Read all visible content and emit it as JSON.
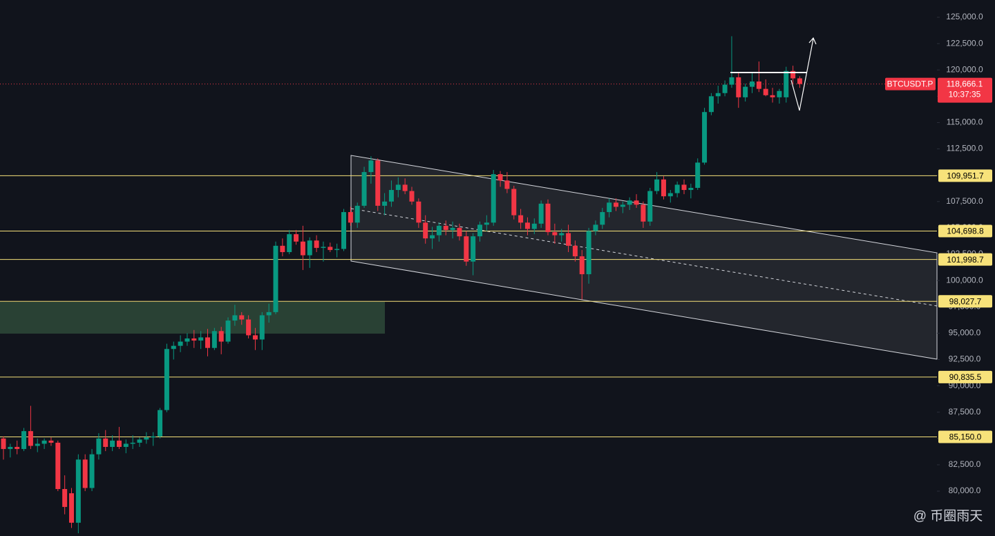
{
  "chart_data": {
    "type": "candlestick",
    "up_color": "#089981",
    "down_color": "#f23645",
    "level_color": "#f7e27a",
    "price_color": "#f23645",
    "ylim": [
      75740,
      126640
    ],
    "yticks": [
      {
        "value": 80000,
        "label": "80,000.0"
      },
      {
        "value": 82500,
        "label": "82,500.0"
      },
      {
        "value": 85000,
        "label": "85,000.0"
      },
      {
        "value": 87500,
        "label": "87,500.0"
      },
      {
        "value": 90000,
        "label": "90,000.0"
      },
      {
        "value": 92500,
        "label": "92,500.0"
      },
      {
        "value": 95000,
        "label": "95,000.0"
      },
      {
        "value": 97500,
        "label": "97,500.0"
      },
      {
        "value": 100000,
        "label": "100,000.0"
      },
      {
        "value": 102500,
        "label": "102,500.0"
      },
      {
        "value": 105000,
        "label": "105,000.0"
      },
      {
        "value": 107500,
        "label": "107,500.0"
      },
      {
        "value": 110000,
        "label": "110,000.0"
      },
      {
        "value": 112500,
        "label": "112,500.0"
      },
      {
        "value": 115000,
        "label": "115,000.0"
      },
      {
        "value": 117500,
        "label": "117,500.0"
      },
      {
        "value": 120000,
        "label": "120,000.0"
      },
      {
        "value": 122500,
        "label": "122,500.0"
      },
      {
        "value": 125000,
        "label": "125,000.0"
      }
    ],
    "levels": [
      {
        "value": 109951.7,
        "label": "109,951.7"
      },
      {
        "value": 104698.8,
        "label": "104,698.8"
      },
      {
        "value": 101998.7,
        "label": "101,998.7"
      },
      {
        "value": 98027.7,
        "label": "98,027.7"
      },
      {
        "value": 90835.5,
        "label": "90,835.5"
      },
      {
        "value": 85150.0,
        "label": "85,150.0"
      }
    ],
    "last_price": {
      "symbol": "BTCUSDT.P",
      "value": 118666.1,
      "label": "118,666.1",
      "countdown": "10:37:35"
    },
    "watermark": "@ 币圈雨天",
    "ohlc": [
      [
        85000,
        85200,
        83000,
        84000
      ],
      [
        84000,
        84500,
        83200,
        84200
      ],
      [
        84200,
        84800,
        83500,
        84000
      ],
      [
        84000,
        86000,
        83800,
        85700
      ],
      [
        85700,
        88100,
        84000,
        84300
      ],
      [
        84300,
        85000,
        83700,
        84500
      ],
      [
        84500,
        85000,
        84000,
        84800
      ],
      [
        84800,
        85100,
        84300,
        84600
      ],
      [
        84600,
        84800,
        80000,
        80200
      ],
      [
        80200,
        81500,
        77800,
        78500
      ],
      [
        79800,
        80300,
        76500,
        77000
      ],
      [
        77000,
        83500,
        76000,
        83000
      ],
      [
        83000,
        83500,
        80000,
        80300
      ],
      [
        80300,
        84000,
        80000,
        83500
      ],
      [
        83500,
        85500,
        83000,
        85000
      ],
      [
        85000,
        85800,
        83800,
        84200
      ],
      [
        84200,
        85300,
        83800,
        84800
      ],
      [
        84800,
        86100,
        84000,
        84200
      ],
      [
        84200,
        84900,
        83600,
        84500
      ],
      [
        84500,
        85300,
        84000,
        84600
      ],
      [
        84600,
        85100,
        84200,
        84900
      ],
      [
        84900,
        85600,
        84500,
        85100
      ],
      [
        85100,
        85600,
        84300,
        85200
      ],
      [
        85200,
        87900,
        85000,
        87700
      ],
      [
        87700,
        94000,
        87500,
        93500
      ],
      [
        93500,
        94200,
        92500,
        93800
      ],
      [
        93800,
        94800,
        93200,
        94200
      ],
      [
        94200,
        95000,
        93800,
        94500
      ],
      [
        94500,
        95300,
        93600,
        94300
      ],
      [
        94300,
        95200,
        93500,
        94600
      ],
      [
        94600,
        95400,
        92800,
        93600
      ],
      [
        93600,
        95500,
        93400,
        95200
      ],
      [
        95200,
        95600,
        93000,
        94200
      ],
      [
        94200,
        96500,
        94000,
        96200
      ],
      [
        96200,
        97700,
        95700,
        96700
      ],
      [
        96700,
        97000,
        95800,
        96300
      ],
      [
        96300,
        96700,
        94500,
        94800
      ],
      [
        94800,
        95500,
        93400,
        94400
      ],
      [
        94400,
        97000,
        93400,
        96700
      ],
      [
        96700,
        97800,
        96000,
        97000
      ],
      [
        97000,
        103700,
        96800,
        103300
      ],
      [
        103300,
        104000,
        102300,
        102700
      ],
      [
        102700,
        104800,
        102500,
        104400
      ],
      [
        104400,
        104800,
        103400,
        103700
      ],
      [
        103700,
        105200,
        101000,
        102400
      ],
      [
        102400,
        104100,
        101200,
        103800
      ],
      [
        103800,
        104300,
        102700,
        103100
      ],
      [
        103100,
        103700,
        101800,
        103200
      ],
      [
        103200,
        103600,
        102700,
        102900
      ],
      [
        102900,
        103500,
        102200,
        103000
      ],
      [
        103000,
        106800,
        102800,
        106500
      ],
      [
        106500,
        107000,
        105200,
        105500
      ],
      [
        105500,
        107400,
        105000,
        107100
      ],
      [
        107100,
        110800,
        106900,
        110300
      ],
      [
        110300,
        111800,
        109200,
        111400
      ],
      [
        111400,
        111600,
        106600,
        107100
      ],
      [
        107100,
        108300,
        106200,
        107500
      ],
      [
        107500,
        109500,
        107000,
        108600
      ],
      [
        108600,
        109800,
        107900,
        109100
      ],
      [
        109100,
        109700,
        108200,
        108500
      ],
      [
        108500,
        108900,
        107200,
        107500
      ],
      [
        107500,
        107800,
        105000,
        105500
      ],
      [
        105500,
        106200,
        103500,
        104000
      ],
      [
        104000,
        105100,
        103000,
        104300
      ],
      [
        104300,
        105500,
        103700,
        105200
      ],
      [
        105200,
        105700,
        104300,
        104800
      ],
      [
        104800,
        105600,
        104000,
        105000
      ],
      [
        105000,
        105400,
        103800,
        104200
      ],
      [
        104200,
        104700,
        101400,
        101800
      ],
      [
        101800,
        104500,
        100500,
        104200
      ],
      [
        104200,
        105600,
        103700,
        105300
      ],
      [
        105300,
        106200,
        104700,
        105500
      ],
      [
        105500,
        110500,
        105200,
        110100
      ],
      [
        110100,
        110400,
        108900,
        109500
      ],
      [
        109500,
        110300,
        108300,
        108700
      ],
      [
        108700,
        109000,
        105800,
        106200
      ],
      [
        106200,
        106800,
        104900,
        105500
      ],
      [
        105500,
        106000,
        104300,
        104900
      ],
      [
        104900,
        105900,
        104400,
        105400
      ],
      [
        105400,
        107600,
        105000,
        107300
      ],
      [
        107300,
        107700,
        104300,
        104600
      ],
      [
        104600,
        105400,
        103500,
        104300
      ],
      [
        104300,
        104900,
        103700,
        104500
      ],
      [
        104500,
        105300,
        102700,
        103300
      ],
      [
        103300,
        103800,
        101800,
        102300
      ],
      [
        102300,
        102900,
        98200,
        100600
      ],
      [
        100600,
        105000,
        99700,
        104700
      ],
      [
        104700,
        105700,
        104300,
        105300
      ],
      [
        105300,
        106900,
        104900,
        106500
      ],
      [
        106500,
        107800,
        106000,
        107400
      ],
      [
        107400,
        107800,
        106600,
        107000
      ],
      [
        107000,
        107500,
        106400,
        107200
      ],
      [
        107200,
        107900,
        106700,
        107600
      ],
      [
        107600,
        108200,
        106900,
        107200
      ],
      [
        107200,
        107500,
        105000,
        105600
      ],
      [
        105600,
        108800,
        105200,
        108500
      ],
      [
        108500,
        110300,
        108200,
        109600
      ],
      [
        109600,
        109900,
        107700,
        108000
      ],
      [
        108000,
        108600,
        107400,
        108300
      ],
      [
        108300,
        109400,
        107900,
        109100
      ],
      [
        109100,
        109600,
        108200,
        108600
      ],
      [
        108600,
        109200,
        107800,
        108800
      ],
      [
        108800,
        111600,
        108600,
        111200
      ],
      [
        111200,
        116400,
        111000,
        116000
      ],
      [
        116000,
        117800,
        115700,
        117500
      ],
      [
        117500,
        118500,
        116800,
        117800
      ],
      [
        117800,
        119000,
        117500,
        118600
      ],
      [
        118600,
        123200,
        118300,
        119300
      ],
      [
        119300,
        119800,
        116400,
        117400
      ],
      [
        117400,
        118700,
        117000,
        118400
      ],
      [
        118400,
        119800,
        117800,
        118900
      ],
      [
        118900,
        120800,
        117900,
        118200
      ],
      [
        118200,
        119100,
        117500,
        117600
      ],
      [
        117600,
        118300,
        116900,
        117400
      ],
      [
        117400,
        118200,
        116800,
        118000
      ],
      [
        117400,
        120300,
        116900,
        119900
      ],
      [
        119900,
        120400,
        118700,
        119200
      ],
      [
        119200,
        119400,
        118300,
        118666.1
      ]
    ]
  }
}
